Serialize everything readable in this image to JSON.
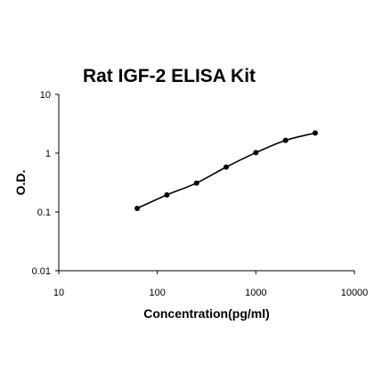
{
  "chart_data": {
    "type": "scatter",
    "title": "Rat IGF-2 ELISA Kit",
    "xlabel": "Concentration(pg/ml)",
    "ylabel": "O.D.",
    "x_scale": "log",
    "y_scale": "log",
    "xlim": [
      10,
      10000
    ],
    "ylim": [
      0.01,
      10
    ],
    "x_ticks": [
      "10",
      "100",
      "1000",
      "10000"
    ],
    "y_ticks": [
      "0.01",
      "0.1",
      "1",
      "10"
    ],
    "grid": false,
    "legend": "none",
    "series": [
      {
        "x": [
          62.5,
          125,
          250,
          500,
          1000,
          2000,
          4000
        ],
        "y": [
          0.115,
          0.195,
          0.31,
          0.58,
          1.02,
          1.65,
          2.2
        ],
        "fit_line": true,
        "color": "#000000"
      }
    ]
  }
}
